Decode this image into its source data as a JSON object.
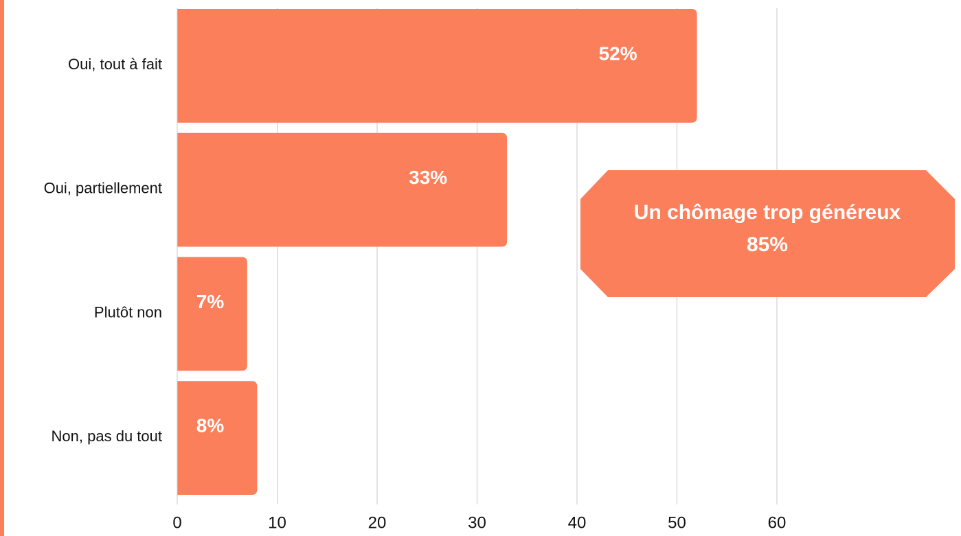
{
  "chart_data": {
    "type": "bar",
    "orientation": "horizontal",
    "categories": [
      "Oui, tout à fait",
      "Oui, partiellement",
      "Plutôt non",
      "Non, pas du tout"
    ],
    "values": [
      52,
      33,
      7,
      8
    ],
    "value_labels": [
      "52%",
      "33%",
      "7%",
      "8%"
    ],
    "color": "#fb7f5a",
    "xlim": [
      0,
      60
    ],
    "xticks": [
      0,
      10,
      20,
      30,
      40,
      50,
      60
    ],
    "grid": true,
    "annotation": {
      "title": "Un chômage trop généreux",
      "value_label": "85%"
    }
  }
}
